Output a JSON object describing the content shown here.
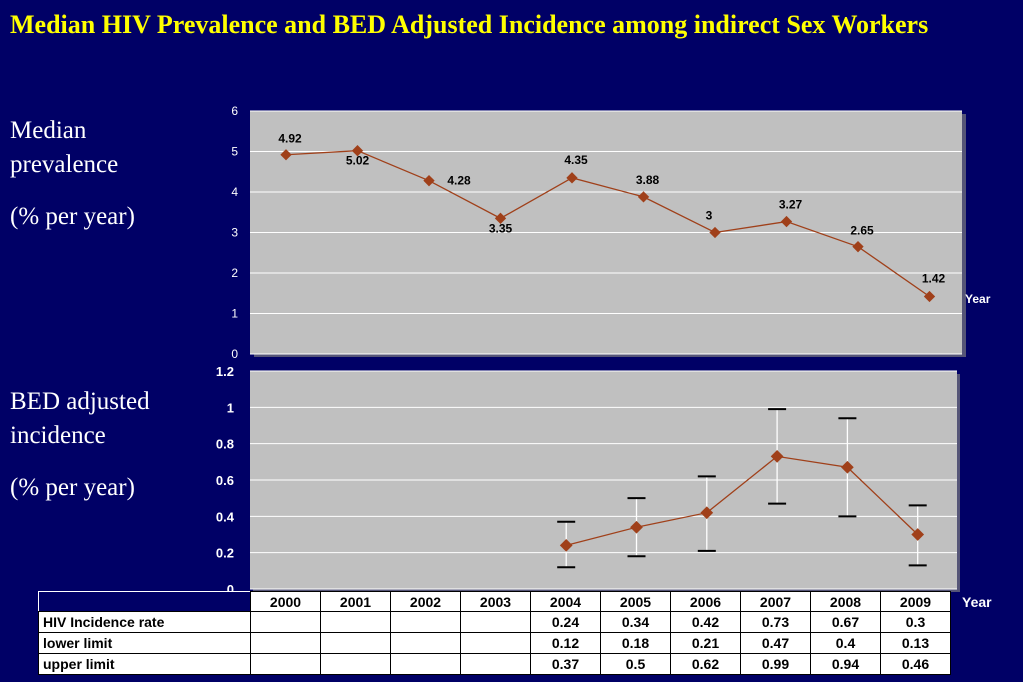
{
  "title": "Median HIV Prevalence and BED Adjusted Incidence among indirect Sex Workers",
  "labels": {
    "prevalence_line1": "Median",
    "prevalence_line2": "prevalence",
    "prevalence_unit": "(% per year)",
    "incidence_line1": "BED adjusted",
    "incidence_line2": "incidence",
    "incidence_unit": "(% per year)"
  },
  "colors": {
    "background": "#000066",
    "title": "#FFFF00",
    "plot_area": "#C0C0C0",
    "series": "#A0401A",
    "marker": "#A0401A"
  },
  "chart_data": [
    {
      "type": "line",
      "title": "",
      "xlabel": "Year",
      "ylabel": "",
      "ylim": [
        0,
        6
      ],
      "yticks": [
        0,
        1,
        2,
        3,
        4,
        5,
        6
      ],
      "grid": true,
      "x": [
        "2000",
        "2001",
        "2002",
        "2003",
        "2004",
        "2005",
        "2006",
        "2007",
        "2008",
        "2009"
      ],
      "series": [
        {
          "values": [
            4.92,
            5.02,
            4.28,
            3.35,
            4.35,
            3.88,
            3,
            3.27,
            2.65,
            1.42
          ]
        }
      ],
      "data_labels": [
        "4.92",
        "5.02",
        "4.28",
        "3.35",
        "4.35",
        "3.88",
        "3",
        "3.27",
        "2.65",
        "1.42"
      ]
    },
    {
      "type": "line",
      "title": "",
      "xlabel": "Year",
      "ylabel": "",
      "ylim": [
        0,
        1.2
      ],
      "yticks": [
        "0",
        "0.2",
        "0.4",
        "0.6",
        "0.8",
        "1",
        "1.2"
      ],
      "grid": true,
      "x": [
        "2000",
        "2001",
        "2002",
        "2003",
        "2004",
        "2005",
        "2006",
        "2007",
        "2008",
        "2009"
      ],
      "series": [
        {
          "name": "HIV Incidence rate",
          "values": [
            null,
            null,
            null,
            null,
            0.24,
            0.34,
            0.42,
            0.73,
            0.67,
            0.3
          ],
          "lower": [
            null,
            null,
            null,
            null,
            0.12,
            0.18,
            0.21,
            0.47,
            0.4,
            0.13
          ],
          "upper": [
            null,
            null,
            null,
            null,
            0.37,
            0.5,
            0.62,
            0.99,
            0.94,
            0.46
          ]
        }
      ]
    }
  ],
  "table": {
    "year_label": "Year",
    "years": [
      "2000",
      "2001",
      "2002",
      "2003",
      "2004",
      "2005",
      "2006",
      "2007",
      "2008",
      "2009"
    ],
    "rows": [
      {
        "label": "HIV Incidence rate",
        "cells": [
          "",
          "",
          "",
          "",
          "0.24",
          "0.34",
          "0.42",
          "0.73",
          "0.67",
          "0.3"
        ]
      },
      {
        "label": "lower limit",
        "cells": [
          "",
          "",
          "",
          "",
          "0.12",
          "0.18",
          "0.21",
          "0.47",
          "0.4",
          "0.13"
        ]
      },
      {
        "label": "upper limit",
        "cells": [
          "",
          "",
          "",
          "",
          "0.37",
          "0.5",
          "0.62",
          "0.99",
          "0.94",
          "0.46"
        ]
      }
    ]
  }
}
